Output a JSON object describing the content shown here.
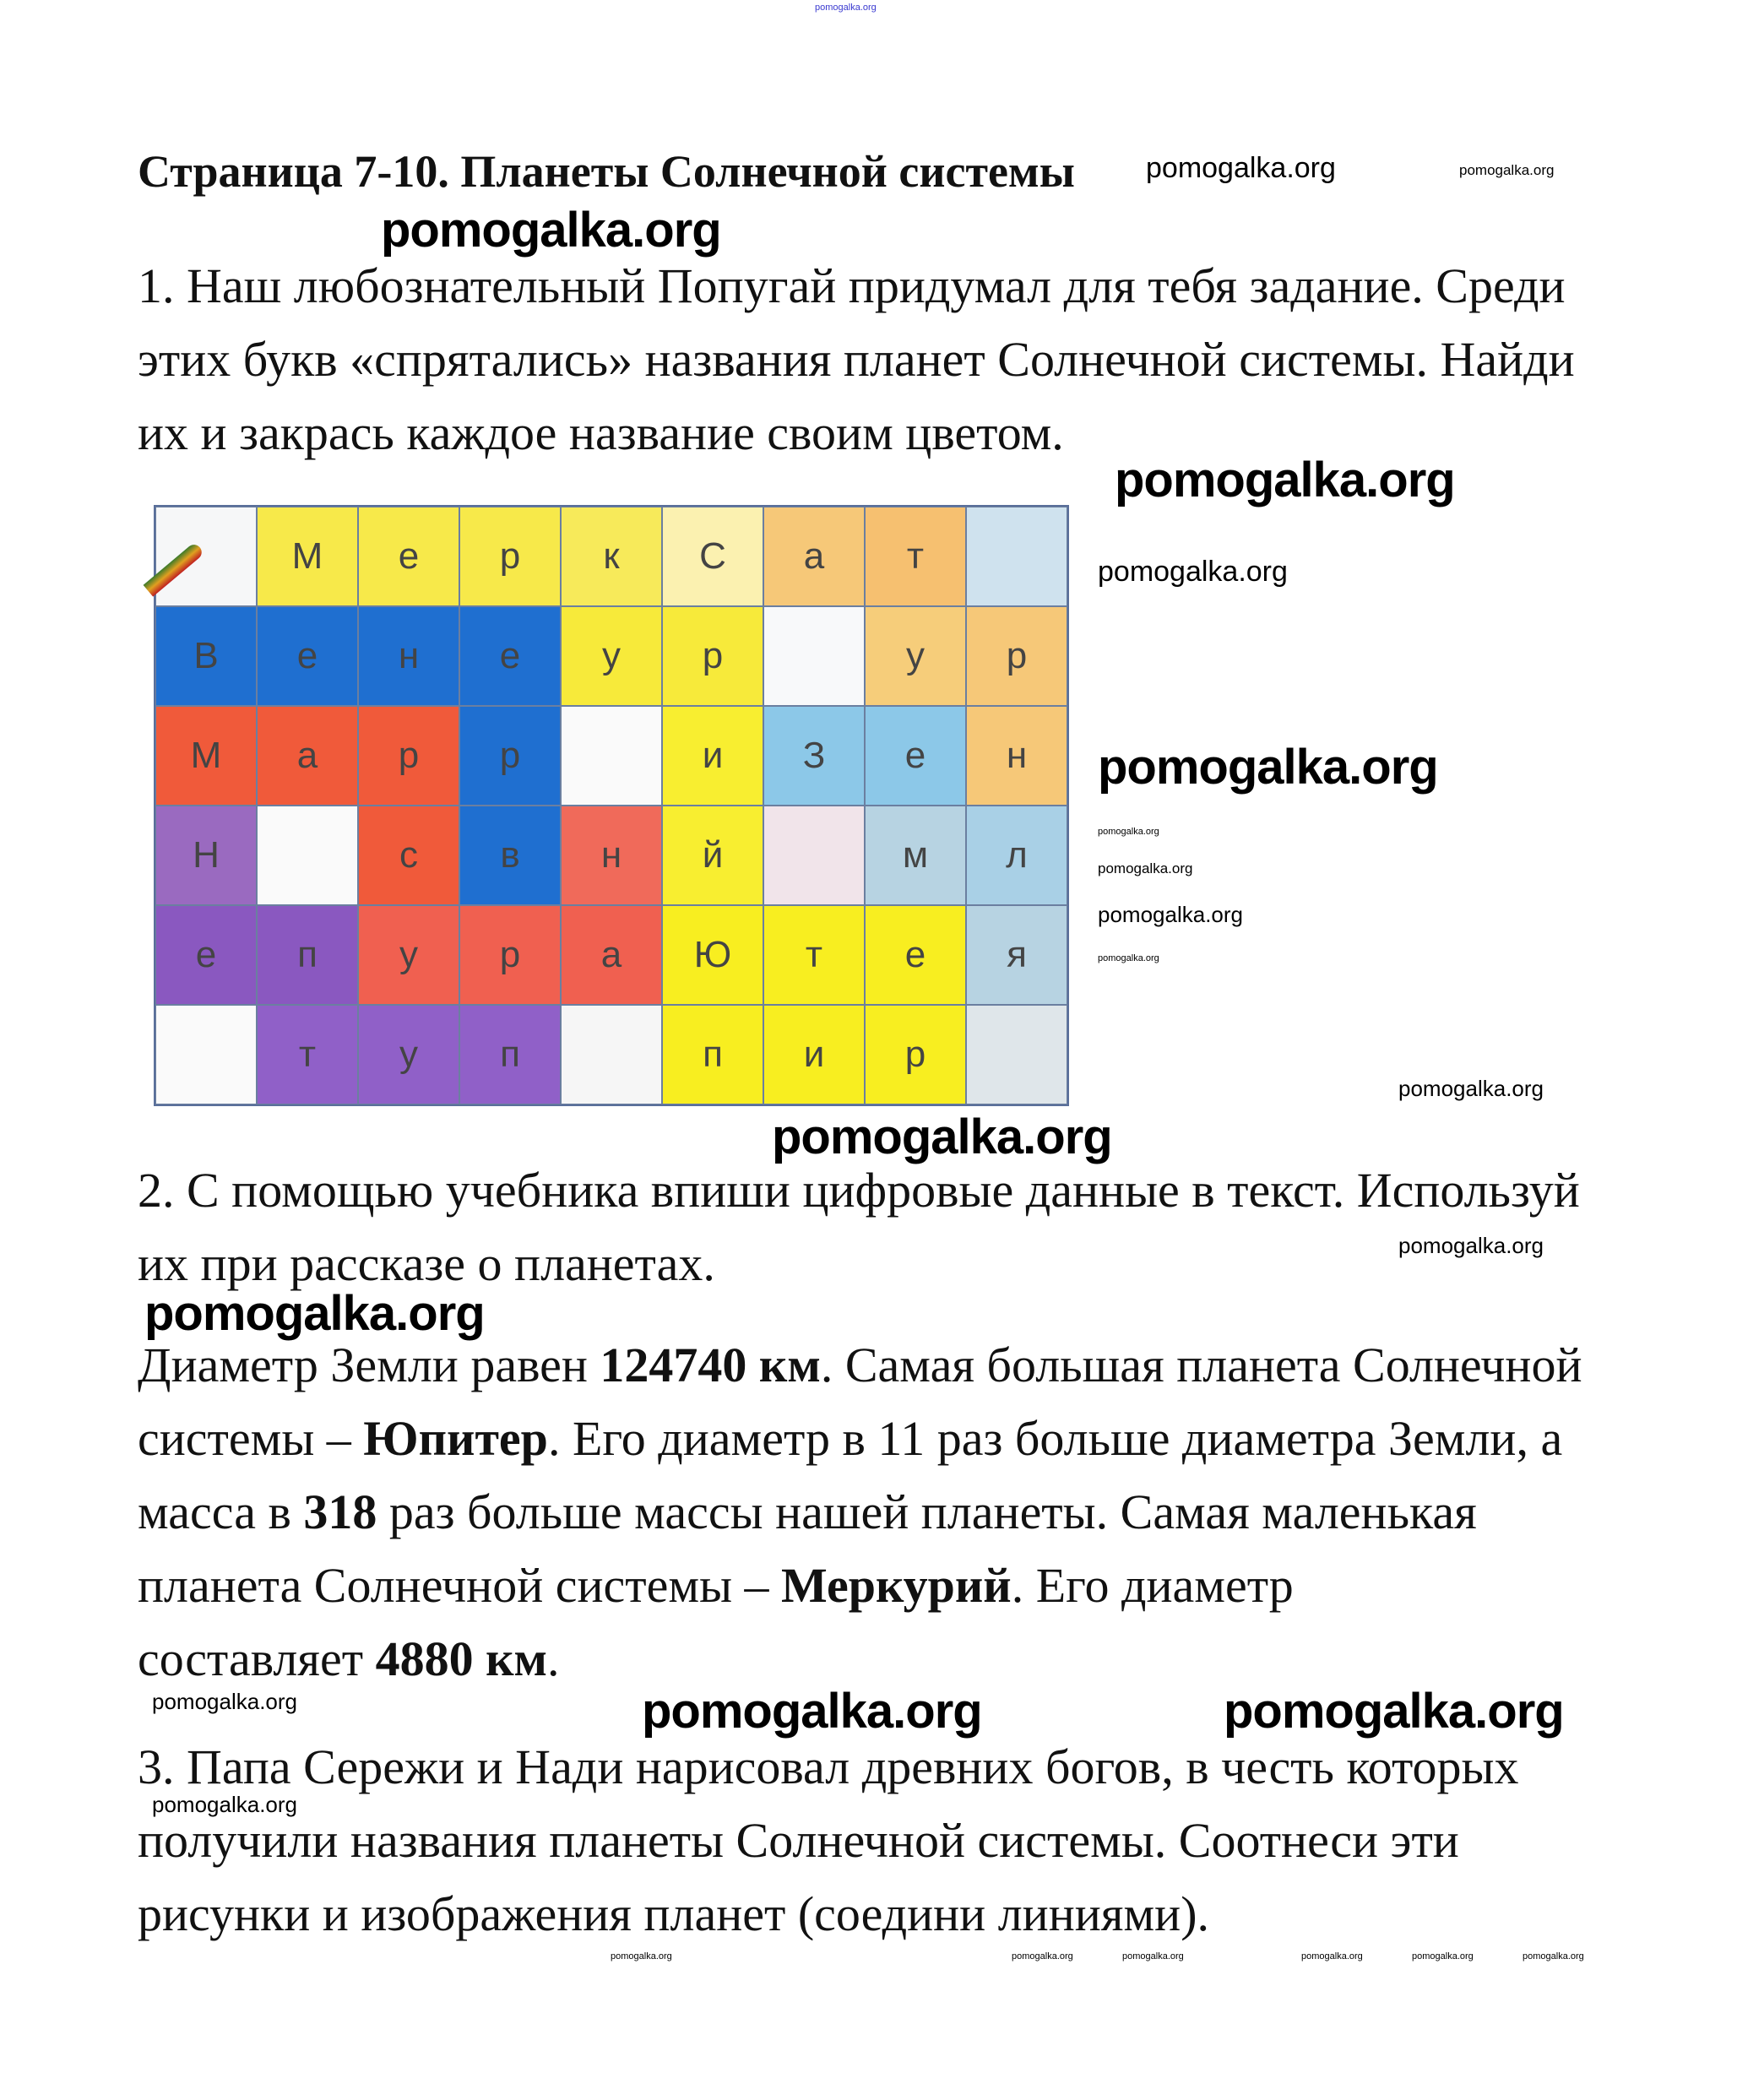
{
  "header_watermark": "pomogalka.org",
  "title": "Страница 7-10. Планеты Солнечной системы",
  "task1": {
    "lines": [
      "1. Наш любознательный Попугай придумал для тебя задание. Среди",
      "этих букв «спрятались» названия планет Солнечной системы. Найди",
      "их и закрась каждое название своим цветом."
    ]
  },
  "grid": {
    "rows": [
      [
        "",
        "М",
        "е",
        "р",
        "к",
        "С",
        "а",
        "т",
        ""
      ],
      [
        "В",
        "е",
        "н",
        "е",
        "у",
        "р",
        "",
        "у",
        "р"
      ],
      [
        "М",
        "а",
        "р",
        "р",
        "",
        "и",
        "З",
        "е",
        "н"
      ],
      [
        "Н",
        "",
        "с",
        "в",
        "н",
        "й",
        "",
        "м",
        "л"
      ],
      [
        "е",
        "п",
        "у",
        "р",
        "а",
        "Ю",
        "т",
        "е",
        "я"
      ],
      [
        "",
        "т",
        "у",
        "п",
        "",
        "п",
        "и",
        "р",
        ""
      ]
    ],
    "colors": [
      [
        "#f6f7f8",
        "#f7e94a",
        "#f7e94a",
        "#f7e94a",
        "#f7ea5a",
        "#fbf1b0",
        "#f6c878",
        "#f6c070",
        "#cfe2ee"
      ],
      [
        "#1f6fd0",
        "#1f6fd0",
        "#1f6fd0",
        "#1f6fd0",
        "#f7ea3a",
        "#f7ea3a",
        "#f8f9fa",
        "#f6cd7a",
        "#f6c878"
      ],
      [
        "#f05a3a",
        "#f05a3a",
        "#f05a3a",
        "#1f6fd0",
        "#fafafa",
        "#f8ee30",
        "#8cc8e8",
        "#8cc8e8",
        "#f6c878"
      ],
      [
        "#9a6ac0",
        "#fafafa",
        "#f05a3a",
        "#1f6fd0",
        "#f06a5a",
        "#f8ee30",
        "#f1e4ea",
        "#b7d3e2",
        "#a9d0e6"
      ],
      [
        "#8a58c0",
        "#8a58c0",
        "#f06050",
        "#f06050",
        "#f06050",
        "#f8ee20",
        "#f8ee20",
        "#f8ee20",
        "#b7d3e2"
      ],
      [
        "#fafafa",
        "#9060c8",
        "#9060c8",
        "#9060c8",
        "#f6f6f6",
        "#f8ee20",
        "#f8ee20",
        "#f8ee20",
        "#dfe6ea"
      ]
    ]
  },
  "task2": {
    "lines": [
      "2. С помощью учебника впиши цифровые данные в текст. Используй",
      "их при рассказе о планетах."
    ]
  },
  "text": {
    "l1a": "Диаметр Земли равен ",
    "l1b": "124740 км",
    "l1c": ". Самая большая планета Солнечной",
    "l2a": "системы – ",
    "l2b": "Юпитер",
    "l2c": ". Его диаметр в 11 раз больше диаметра Земли, а",
    "l3a": "масса  в  ",
    "l3b": "318",
    "l3c": " раз больше массы нашей планеты. Самая маленькая",
    "l4a": "планета Солнечной системы – ",
    "l4b": "Меркурий",
    "l4c": ". Его диаметр",
    "l5a": "составляет ",
    "l5b": "4880 км",
    "l5c": "."
  },
  "task3": {
    "lines": [
      "3. Папа Сережи и Нади нарисовал древних богов, в честь которых",
      "получили названия планеты Солнечной системы. Соотнеси эти",
      "рисунки и изображения планет (соедини линиями)."
    ]
  },
  "watermark": "pomogalka.org",
  "colors": {
    "header_watermark": "#3a3ad0",
    "text": "#111111"
  }
}
